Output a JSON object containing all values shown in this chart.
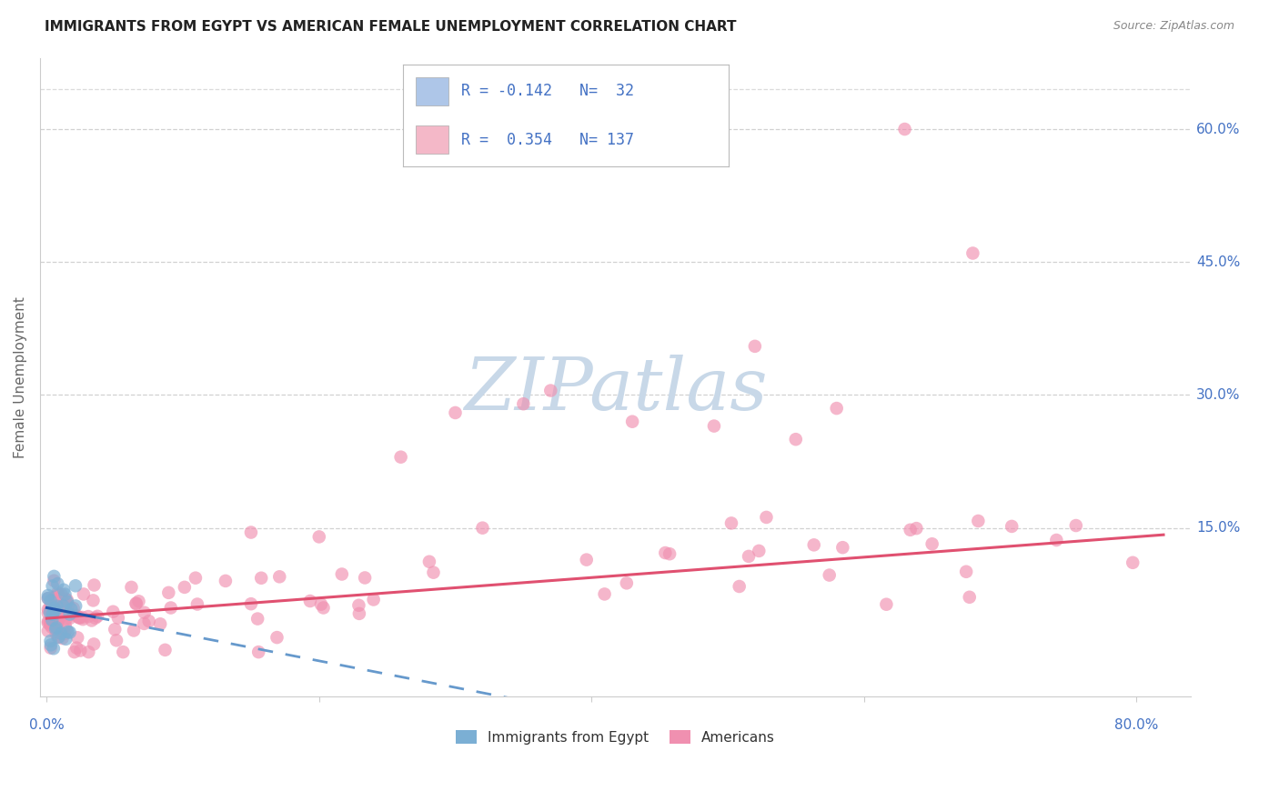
{
  "title": "IMMIGRANTS FROM EGYPT VS AMERICAN FEMALE UNEMPLOYMENT CORRELATION CHART",
  "source": "Source: ZipAtlas.com",
  "ylabel": "Female Unemployment",
  "ytick_labels": [
    "60.0%",
    "45.0%",
    "30.0%",
    "15.0%"
  ],
  "ytick_values": [
    0.6,
    0.45,
    0.3,
    0.15
  ],
  "xlim": [
    -0.005,
    0.84
  ],
  "ylim": [
    -0.04,
    0.68
  ],
  "legend_entry1": {
    "color_fill": "#aec6e8",
    "R": "-0.142",
    "N": "32"
  },
  "legend_entry2": {
    "color_fill": "#f4b8c8",
    "R": "0.354",
    "N": "137"
  },
  "egypt_color": "#7bafd4",
  "american_color": "#f090b0",
  "trendline_egypt_solid_color": "#2255aa",
  "trendline_egypt_dash_color": "#6699cc",
  "trendline_american_color": "#e05070",
  "watermark_text": "ZIPatlas",
  "watermark_color": "#c8d8e8",
  "background_color": "#ffffff",
  "grid_color": "#cccccc",
  "legend_text_color": "#4472c4",
  "title_color": "#222222",
  "source_color": "#888888",
  "axis_label_color": "#4472c4",
  "ylabel_color": "#666666"
}
